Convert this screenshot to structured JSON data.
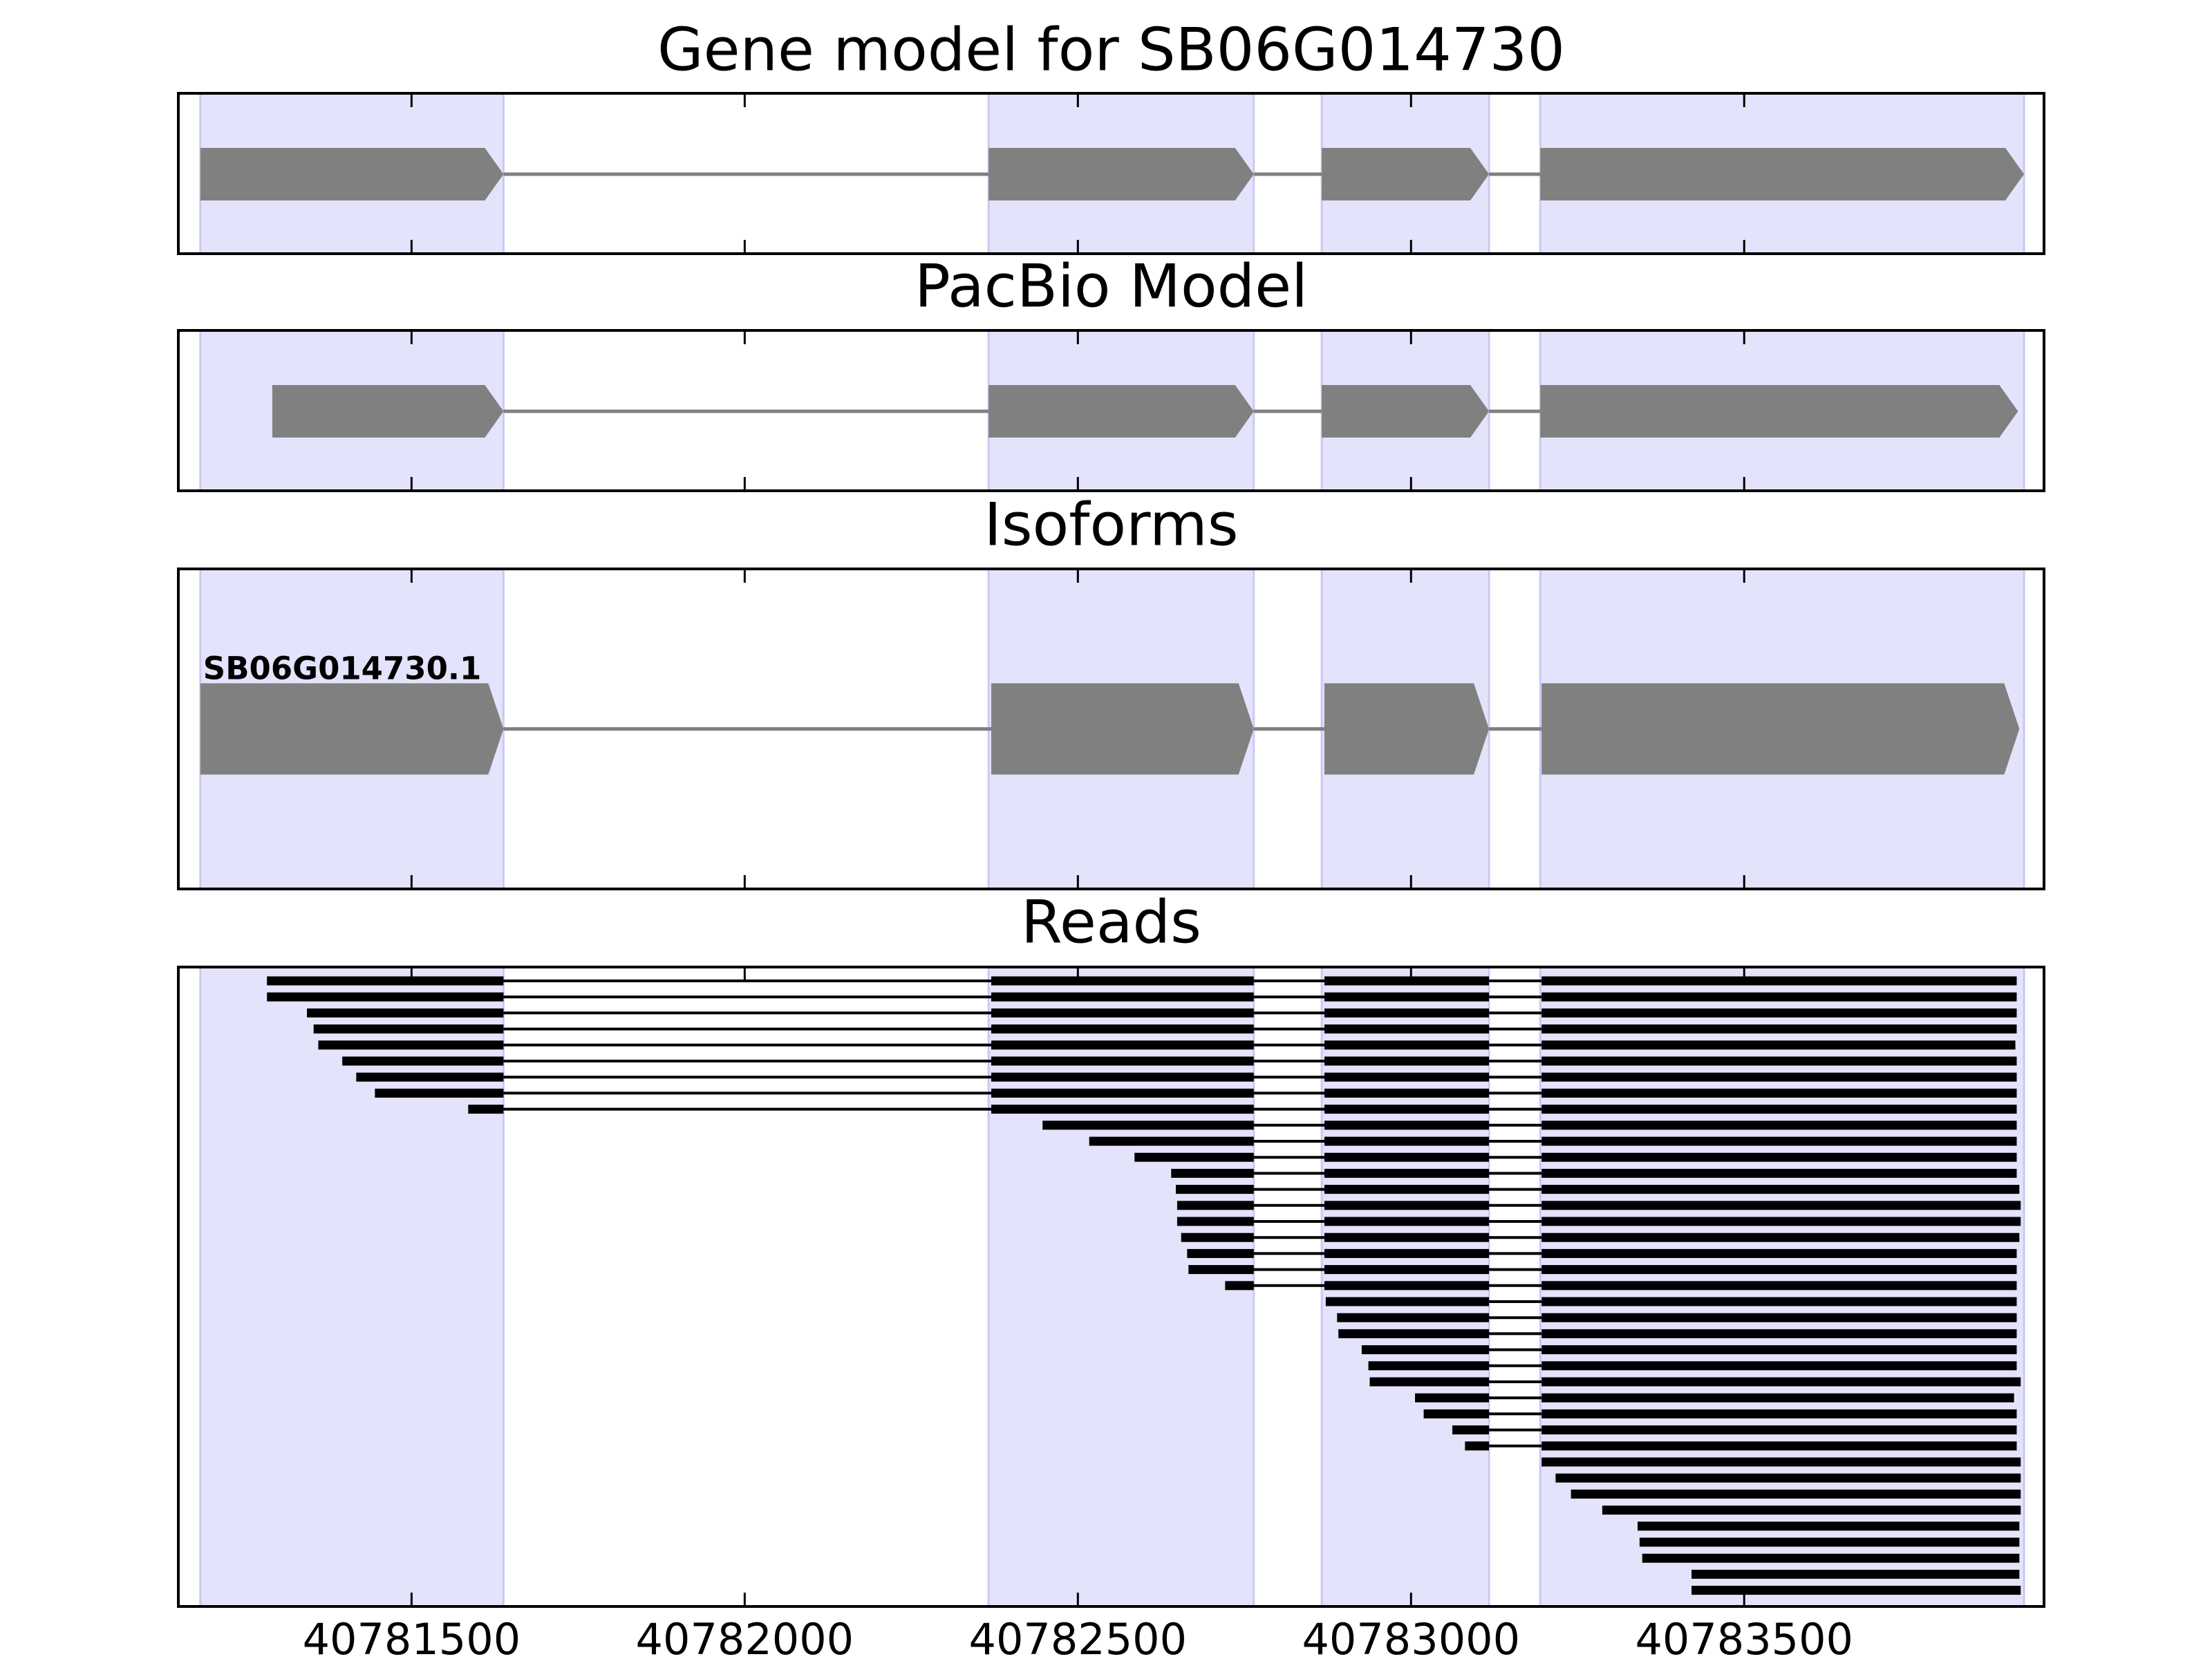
{
  "chart_data": [
    {
      "type": "gene",
      "title": "Gene model for SB06G014730",
      "color": "#808080",
      "highlight": "#e3e3fb",
      "exons": [
        [
          40781183,
          40781638
        ],
        [
          40782366,
          40782764
        ],
        [
          40782866,
          40783117
        ],
        [
          40783194,
          40783920
        ]
      ],
      "xlim": [
        40781150,
        40783950
      ],
      "xticks": [
        40781500,
        40782000,
        40782500,
        40783000,
        40783500
      ]
    },
    {
      "type": "gene",
      "title": "PacBio Model",
      "color": "#808080",
      "highlight": "#e3e3fb",
      "exons": [
        [
          40781291,
          40781638
        ],
        [
          40782366,
          40782764
        ],
        [
          40782866,
          40783117
        ],
        [
          40783194,
          40783911
        ]
      ],
      "xlim": [
        40781150,
        40783950
      ],
      "xticks": [
        40781500,
        40782000,
        40782500,
        40783000,
        40783500
      ]
    },
    {
      "type": "gene",
      "title": "Isoforms",
      "label": "SB06G014730.1",
      "color": "#808080",
      "highlight": "#e3e3fb",
      "exons": [
        [
          40781183,
          40781638
        ],
        [
          40782370,
          40782764
        ],
        [
          40782870,
          40783117
        ],
        [
          40783196,
          40783913
        ]
      ],
      "xlim": [
        40781150,
        40783950
      ],
      "xticks": [
        40781500,
        40782000,
        40782500,
        40783000,
        40783500
      ]
    },
    {
      "type": "reads",
      "title": "Reads",
      "color": "#000000",
      "highlight": "#e3e3fb",
      "exons": [
        [
          40781183,
          40781638
        ],
        [
          40782370,
          40782764
        ],
        [
          40782870,
          40783117
        ],
        [
          40783196,
          40783920
        ]
      ],
      "starts": [
        40781283,
        40781283,
        40781343,
        40781353,
        40781360,
        40781396,
        40781417,
        40781445,
        40781585,
        40782447,
        40782517,
        40782585,
        40782640,
        40782647,
        40782649,
        40782649,
        40782655,
        40782664,
        40782666,
        40782721,
        40782872,
        40782889,
        40782891,
        40782926,
        40782936,
        40782938,
        40783006,
        40783019,
        40783062,
        40783081,
        40783194,
        40783217,
        40783240,
        40783287,
        40783340,
        40783343,
        40783347,
        40783421,
        40783421
      ],
      "ends": [
        40783909,
        40783909,
        40783909,
        40783909,
        40783907,
        40783909,
        40783909,
        40783909,
        40783909,
        40783909,
        40783909,
        40783909,
        40783909,
        40783913,
        40783915,
        40783915,
        40783913,
        40783909,
        40783909,
        40783909,
        40783909,
        40783909,
        40783909,
        40783909,
        40783909,
        40783915,
        40783905,
        40783909,
        40783909,
        40783909,
        40783915,
        40783915,
        40783915,
        40783915,
        40783913,
        40783913,
        40783913,
        40783913,
        40783915
      ],
      "xlim": [
        40781150,
        40783950
      ],
      "xticks": [
        40781500,
        40782000,
        40782500,
        40783000,
        40783500
      ]
    }
  ]
}
